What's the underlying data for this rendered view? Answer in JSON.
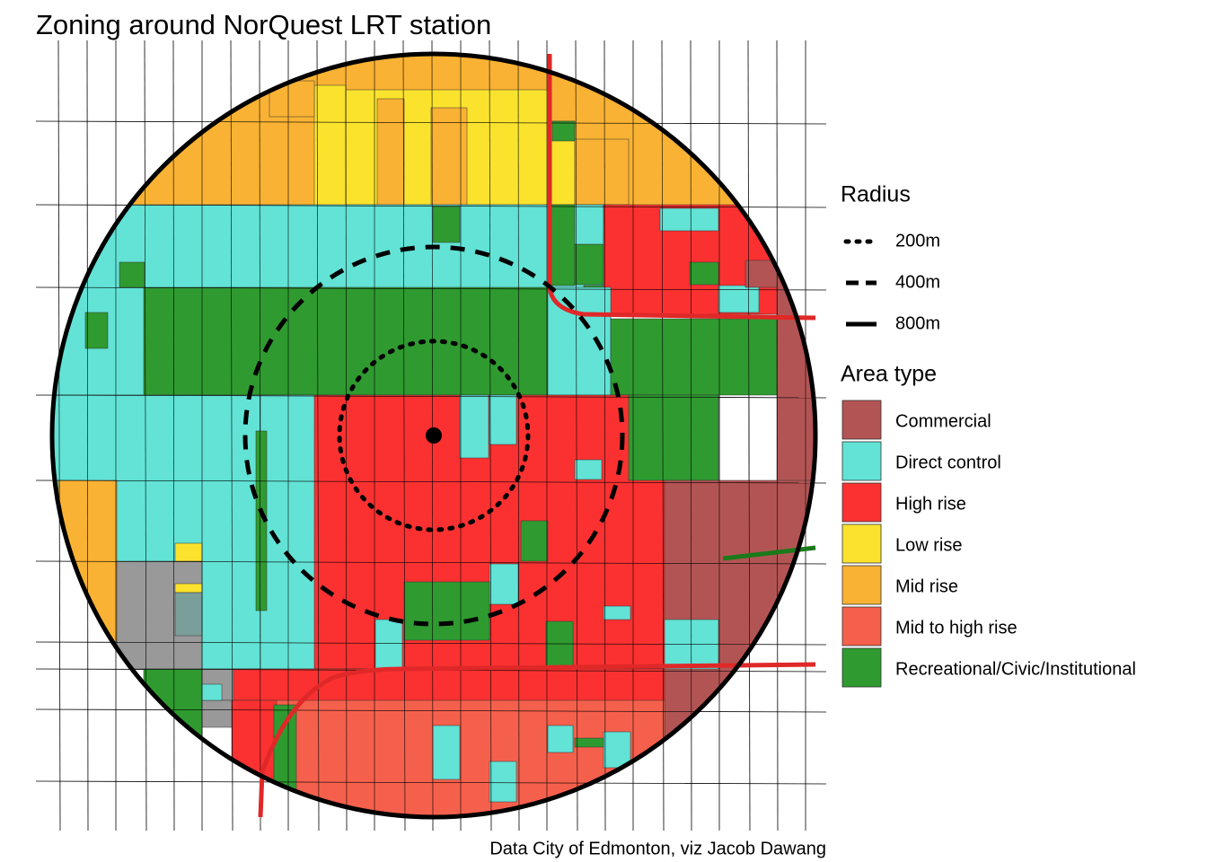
{
  "title": "Zoning around NorQuest LRT station",
  "caption": "Data City of Edmonton, viz Jacob Dawang",
  "legend": {
    "radius": {
      "title": "Radius",
      "items": [
        {
          "label": "200m",
          "style": "dotted"
        },
        {
          "label": "400m",
          "style": "dashed"
        },
        {
          "label": "800m",
          "style": "solid"
        }
      ]
    },
    "area_type": {
      "title": "Area type",
      "items": [
        {
          "label": "Commercial",
          "color": "#b35454"
        },
        {
          "label": "Direct control",
          "color": "#62e3d6"
        },
        {
          "label": "High rise",
          "color": "#fb3131"
        },
        {
          "label": "Low rise",
          "color": "#fbe32d"
        },
        {
          "label": "Mid rise",
          "color": "#f9b233"
        },
        {
          "label": "Mid to high rise",
          "color": "#f5604c"
        },
        {
          "label": "Recreational/Civic/Institutional",
          "color": "#2f9a30"
        }
      ]
    }
  }
}
